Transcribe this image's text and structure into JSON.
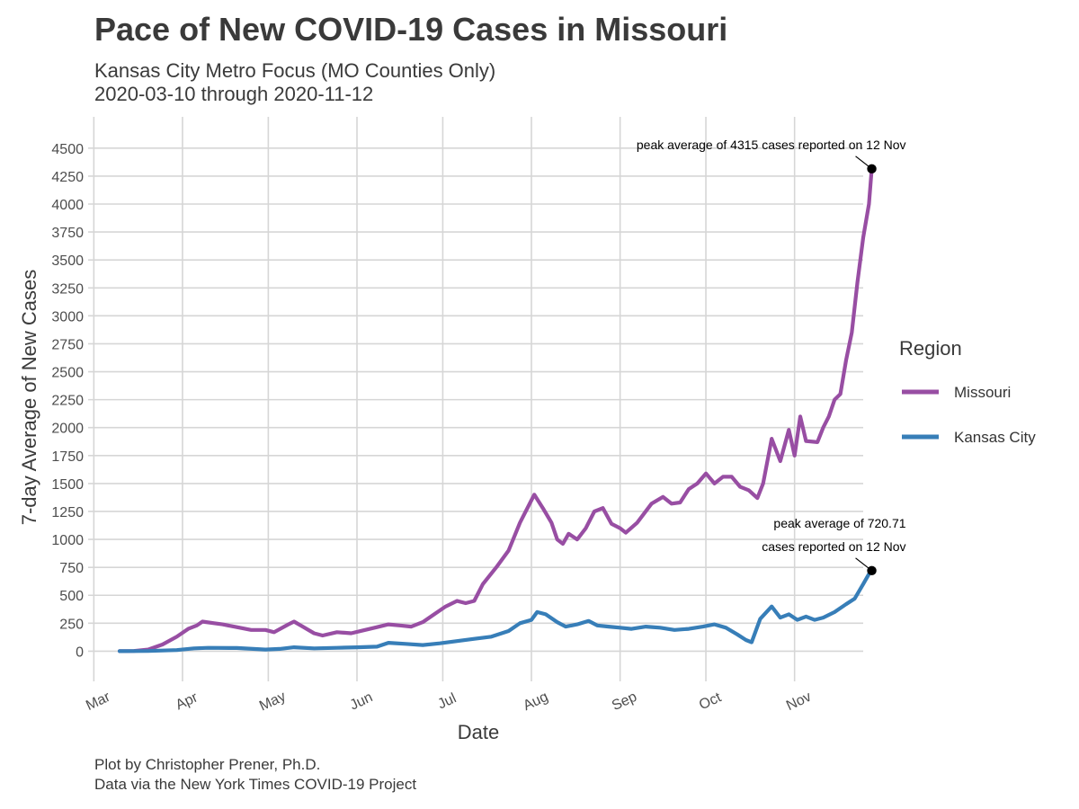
{
  "header": {
    "title": "Pace of New COVID-19 Cases in Missouri",
    "subtitle_line1": "Kansas City Metro Focus (MO Counties Only)",
    "subtitle_line2": "2020-03-10 through 2020-11-12"
  },
  "footer": {
    "caption_line1": "Plot by Christopher Prener, Ph.D.",
    "caption_line2": "Data via the New York Times COVID-19 Project"
  },
  "chart_data": {
    "type": "line",
    "xlabel": "Date",
    "ylabel": "7-day Average of New Cases",
    "x_ticks": [
      {
        "label": "Mar",
        "date": "2020-03-01"
      },
      {
        "label": "Apr",
        "date": "2020-04-01"
      },
      {
        "label": "May",
        "date": "2020-05-01"
      },
      {
        "label": "Jun",
        "date": "2020-06-01"
      },
      {
        "label": "Jul",
        "date": "2020-07-01"
      },
      {
        "label": "Aug",
        "date": "2020-08-01"
      },
      {
        "label": "Sep",
        "date": "2020-09-01"
      },
      {
        "label": "Oct",
        "date": "2020-10-01"
      },
      {
        "label": "Nov",
        "date": "2020-11-01"
      }
    ],
    "y_ticks": [
      0,
      250,
      500,
      750,
      1000,
      1250,
      1500,
      1750,
      2000,
      2250,
      2500,
      2750,
      3000,
      3250,
      3500,
      3750,
      4000,
      4250,
      4500
    ],
    "xlim": [
      "2020-02-28",
      "2020-11-25"
    ],
    "ylim": [
      -270,
      4780
    ],
    "grid": true,
    "legend": {
      "title": "Region",
      "position": "right"
    },
    "series": [
      {
        "name": "Missouri",
        "color": "#984ea3",
        "points": [
          [
            "2020-03-10",
            0
          ],
          [
            "2020-03-15",
            2
          ],
          [
            "2020-03-20",
            15
          ],
          [
            "2020-03-25",
            60
          ],
          [
            "2020-03-30",
            130
          ],
          [
            "2020-04-03",
            200
          ],
          [
            "2020-04-06",
            230
          ],
          [
            "2020-04-08",
            265
          ],
          [
            "2020-04-12",
            250
          ],
          [
            "2020-04-15",
            240
          ],
          [
            "2020-04-20",
            215
          ],
          [
            "2020-04-25",
            190
          ],
          [
            "2020-04-30",
            190
          ],
          [
            "2020-05-03",
            170
          ],
          [
            "2020-05-08",
            240
          ],
          [
            "2020-05-10",
            265
          ],
          [
            "2020-05-13",
            220
          ],
          [
            "2020-05-17",
            160
          ],
          [
            "2020-05-20",
            140
          ],
          [
            "2020-05-25",
            170
          ],
          [
            "2020-05-30",
            160
          ],
          [
            "2020-06-03",
            185
          ],
          [
            "2020-06-08",
            215
          ],
          [
            "2020-06-12",
            240
          ],
          [
            "2020-06-16",
            230
          ],
          [
            "2020-06-20",
            220
          ],
          [
            "2020-06-24",
            260
          ],
          [
            "2020-06-28",
            330
          ],
          [
            "2020-07-02",
            400
          ],
          [
            "2020-07-06",
            450
          ],
          [
            "2020-07-09",
            430
          ],
          [
            "2020-07-12",
            450
          ],
          [
            "2020-07-15",
            600
          ],
          [
            "2020-07-20",
            760
          ],
          [
            "2020-07-24",
            900
          ],
          [
            "2020-07-28",
            1150
          ],
          [
            "2020-08-01",
            1350
          ],
          [
            "2020-08-02",
            1400
          ],
          [
            "2020-08-05",
            1280
          ],
          [
            "2020-08-08",
            1150
          ],
          [
            "2020-08-10",
            1000
          ],
          [
            "2020-08-12",
            960
          ],
          [
            "2020-08-14",
            1050
          ],
          [
            "2020-08-17",
            1000
          ],
          [
            "2020-08-20",
            1100
          ],
          [
            "2020-08-23",
            1250
          ],
          [
            "2020-08-26",
            1280
          ],
          [
            "2020-08-29",
            1140
          ],
          [
            "2020-09-01",
            1100
          ],
          [
            "2020-09-03",
            1060
          ],
          [
            "2020-09-07",
            1150
          ],
          [
            "2020-09-12",
            1320
          ],
          [
            "2020-09-16",
            1380
          ],
          [
            "2020-09-19",
            1320
          ],
          [
            "2020-09-22",
            1330
          ],
          [
            "2020-09-25",
            1450
          ],
          [
            "2020-09-28",
            1500
          ],
          [
            "2020-10-01",
            1590
          ],
          [
            "2020-10-04",
            1500
          ],
          [
            "2020-10-07",
            1560
          ],
          [
            "2020-10-10",
            1560
          ],
          [
            "2020-10-13",
            1470
          ],
          [
            "2020-10-16",
            1440
          ],
          [
            "2020-10-19",
            1370
          ],
          [
            "2020-10-21",
            1500
          ],
          [
            "2020-10-24",
            1900
          ],
          [
            "2020-10-27",
            1700
          ],
          [
            "2020-10-30",
            1980
          ],
          [
            "2020-11-01",
            1750
          ],
          [
            "2020-11-03",
            2100
          ],
          [
            "2020-11-05",
            1880
          ],
          [
            "2020-11-09",
            1870
          ],
          [
            "2020-11-11",
            2000
          ],
          [
            "2020-11-13",
            2100
          ],
          [
            "2020-11-15",
            2250
          ],
          [
            "2020-11-17",
            2300
          ],
          [
            "2020-11-19",
            2600
          ],
          [
            "2020-11-21",
            2850
          ],
          [
            "2020-11-23",
            3300
          ],
          [
            "2020-11-25",
            3700
          ],
          [
            "2020-11-27",
            4000
          ],
          [
            "2020-11-28",
            4315
          ]
        ]
      },
      {
        "name": "Kansas City",
        "color": "#377eb8",
        "points": [
          [
            "2020-03-10",
            0
          ],
          [
            "2020-03-20",
            2
          ],
          [
            "2020-03-30",
            10
          ],
          [
            "2020-04-05",
            25
          ],
          [
            "2020-04-10",
            30
          ],
          [
            "2020-04-20",
            28
          ],
          [
            "2020-04-30",
            15
          ],
          [
            "2020-05-05",
            20
          ],
          [
            "2020-05-10",
            35
          ],
          [
            "2020-05-17",
            25
          ],
          [
            "2020-05-25",
            30
          ],
          [
            "2020-06-01",
            35
          ],
          [
            "2020-06-08",
            40
          ],
          [
            "2020-06-12",
            75
          ],
          [
            "2020-06-18",
            65
          ],
          [
            "2020-06-24",
            55
          ],
          [
            "2020-06-30",
            70
          ],
          [
            "2020-07-06",
            90
          ],
          [
            "2020-07-12",
            110
          ],
          [
            "2020-07-18",
            130
          ],
          [
            "2020-07-24",
            180
          ],
          [
            "2020-07-28",
            250
          ],
          [
            "2020-08-01",
            280
          ],
          [
            "2020-08-03",
            350
          ],
          [
            "2020-08-06",
            330
          ],
          [
            "2020-08-10",
            260
          ],
          [
            "2020-08-13",
            220
          ],
          [
            "2020-08-17",
            240
          ],
          [
            "2020-08-21",
            270
          ],
          [
            "2020-08-24",
            230
          ],
          [
            "2020-08-28",
            220
          ],
          [
            "2020-09-01",
            210
          ],
          [
            "2020-09-05",
            200
          ],
          [
            "2020-09-10",
            220
          ],
          [
            "2020-09-15",
            210
          ],
          [
            "2020-09-20",
            190
          ],
          [
            "2020-09-25",
            200
          ],
          [
            "2020-09-30",
            220
          ],
          [
            "2020-10-04",
            240
          ],
          [
            "2020-10-08",
            210
          ],
          [
            "2020-10-12",
            150
          ],
          [
            "2020-10-15",
            100
          ],
          [
            "2020-10-17",
            80
          ],
          [
            "2020-10-20",
            290
          ],
          [
            "2020-10-24",
            400
          ],
          [
            "2020-10-27",
            300
          ],
          [
            "2020-10-30",
            330
          ],
          [
            "2020-11-02",
            280
          ],
          [
            "2020-11-05",
            310
          ],
          [
            "2020-11-08",
            280
          ],
          [
            "2020-11-11",
            300
          ],
          [
            "2020-11-15",
            350
          ],
          [
            "2020-11-19",
            420
          ],
          [
            "2020-11-22",
            470
          ],
          [
            "2020-11-25",
            600
          ],
          [
            "2020-11-27",
            690
          ],
          [
            "2020-11-28",
            720.71
          ]
        ]
      }
    ],
    "annotations": [
      {
        "text_line1": "peak average of 4315 cases reported on 12 Nov",
        "point": [
          "2020-11-28",
          4315
        ],
        "series": "Missouri"
      },
      {
        "text_line1": "peak average of 720.71",
        "text_line2": "cases reported on 12 Nov",
        "point": [
          "2020-11-28",
          720.71
        ],
        "series": "Kansas City"
      }
    ]
  }
}
